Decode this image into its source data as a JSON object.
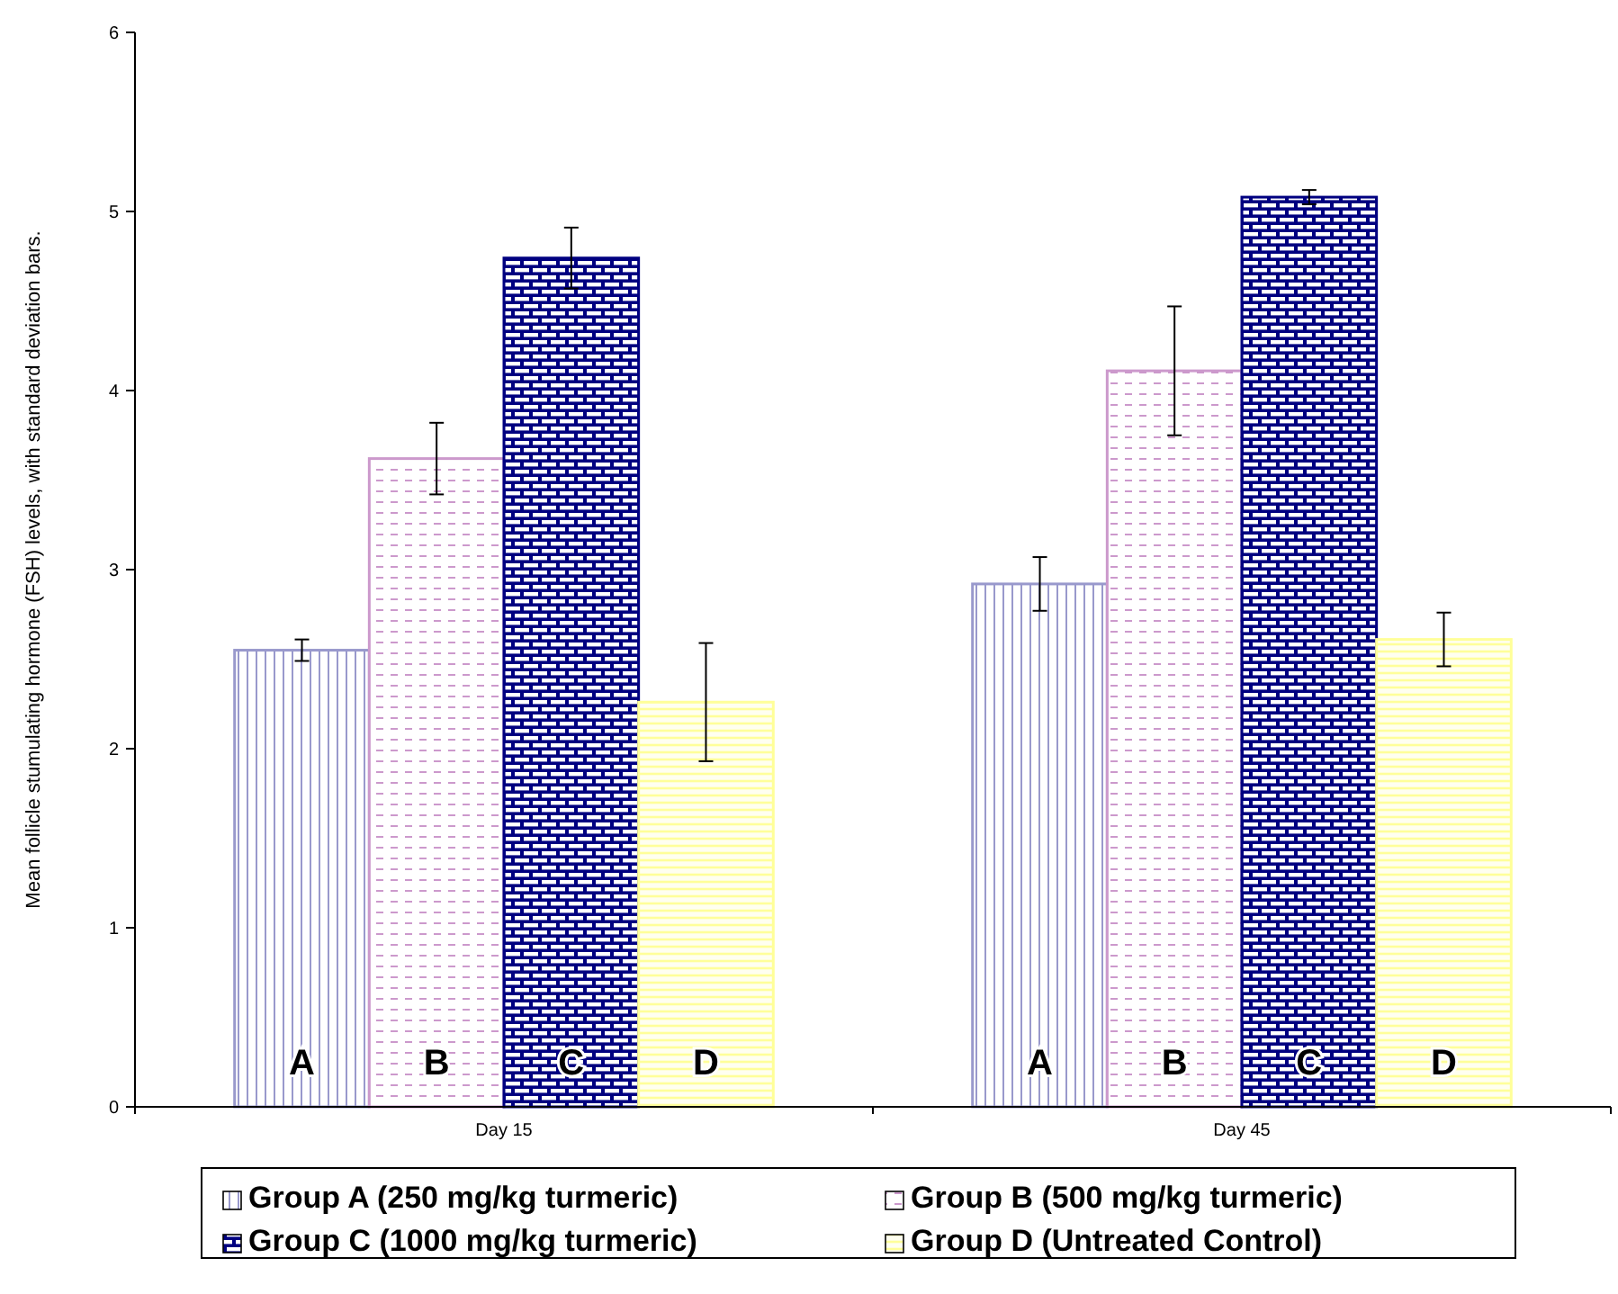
{
  "chart_data": {
    "type": "bar",
    "ylabel": "Mean follicle stumulating hormone (FSH) levels, with standard deviation bars.",
    "categories": [
      "Day 15",
      "Day 45"
    ],
    "series": [
      {
        "name": "Group A (250 mg/kg turmeric)",
        "color": "#9999cc",
        "values": [
          2.55,
          2.92
        ],
        "errors": [
          0.06,
          0.15
        ]
      },
      {
        "name": "Group B (500 mg/kg turmeric)",
        "color": "#cc99cc",
        "values": [
          3.62,
          4.11
        ],
        "errors": [
          0.2,
          0.36
        ]
      },
      {
        "name": "Group C (1000 mg/kg turmeric)",
        "color": "#000080",
        "values": [
          4.74,
          5.08
        ],
        "errors": [
          0.17,
          0.04
        ]
      },
      {
        "name": "Group D (Untreated Control)",
        "color": "#ffff99",
        "values": [
          2.26,
          2.61
        ],
        "errors": [
          0.33,
          0.15
        ]
      }
    ],
    "annotations": [
      "A",
      "B",
      "C",
      "D",
      "A",
      "B",
      "C",
      "D"
    ],
    "ylim": [
      0,
      6
    ],
    "yticks": [
      0,
      1,
      2,
      3,
      4,
      5,
      6
    ],
    "grid": false,
    "legend": "bottom"
  }
}
